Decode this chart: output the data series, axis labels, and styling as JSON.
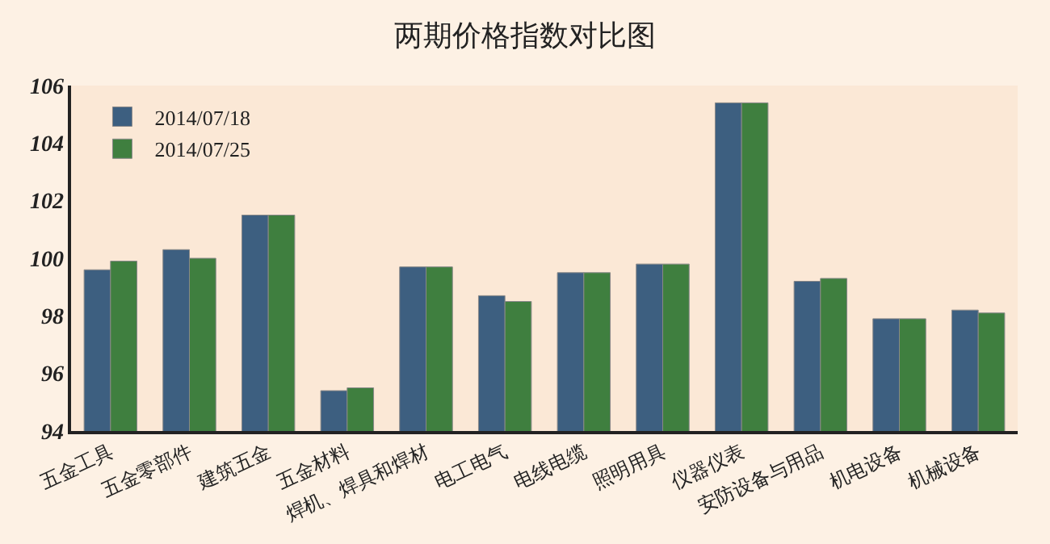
{
  "chart_data": {
    "type": "bar",
    "title": "两期价格指数对比图",
    "categories": [
      "五金工具",
      "五金零部件",
      "建筑五金",
      "五金材料",
      "焊机、焊具和焊材",
      "电工电气",
      "电线电缆",
      "照明用具",
      "仪器仪表",
      "安防设备与用品",
      "机电设备",
      "机械设备"
    ],
    "series": [
      {
        "name": "2014/07/18",
        "color": "#3d5f80",
        "values": [
          99.6,
          100.3,
          101.5,
          95.4,
          99.7,
          98.7,
          99.5,
          99.8,
          105.4,
          99.2,
          97.9,
          98.2
        ]
      },
      {
        "name": "2014/07/25",
        "color": "#3f7f3f",
        "values": [
          99.9,
          100.0,
          101.5,
          95.5,
          99.7,
          98.5,
          99.5,
          99.8,
          105.4,
          99.3,
          97.9,
          98.1
        ]
      }
    ],
    "ylim": [
      94,
      106
    ],
    "yticks": [
      94,
      96,
      98,
      100,
      102,
      104,
      106
    ],
    "grid": false,
    "legend": "top left"
  }
}
